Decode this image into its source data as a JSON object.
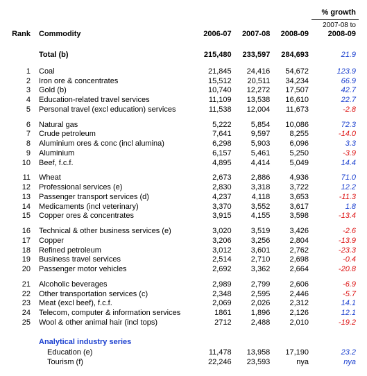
{
  "headers": {
    "rank": "Rank",
    "commodity": "Commodity",
    "y1": "2006-07",
    "y2": "2007-08",
    "y3": "2008-09",
    "growth_group": "% growth",
    "growth_sub1": "2007-08 to",
    "growth_sub2": "2008-09"
  },
  "total": {
    "label": "Total (b)",
    "y1": "215,480",
    "y2": "233,597",
    "y3": "284,693",
    "growth": "21.9",
    "growth_sign": "pos"
  },
  "rows": [
    {
      "rank": "1",
      "name": "Coal",
      "y1": "21,845",
      "y2": "24,416",
      "y3": "54,672",
      "g": "123.9",
      "s": "pos"
    },
    {
      "rank": "2",
      "name": "Iron ore & concentrates",
      "y1": "15,512",
      "y2": "20,511",
      "y3": "34,234",
      "g": "66.9",
      "s": "pos"
    },
    {
      "rank": "3",
      "name": "Gold (b)",
      "y1": "10,740",
      "y2": "12,272",
      "y3": "17,507",
      "g": "42.7",
      "s": "pos"
    },
    {
      "rank": "4",
      "name": "Education-related travel services",
      "y1": "11,109",
      "y2": "13,538",
      "y3": "16,610",
      "g": "22.7",
      "s": "pos"
    },
    {
      "rank": "5",
      "name": "Personal travel (excl education) services",
      "y1": "11,538",
      "y2": "12,004",
      "y3": "11,673",
      "g": "-2.8",
      "s": "neg"
    },
    {
      "rank": "6",
      "name": "Natural gas",
      "y1": "5,222",
      "y2": "5,854",
      "y3": "10,086",
      "g": "72.3",
      "s": "pos"
    },
    {
      "rank": "7",
      "name": "Crude petroleum",
      "y1": "7,641",
      "y2": "9,597",
      "y3": "8,255",
      "g": "-14.0",
      "s": "neg"
    },
    {
      "rank": "8",
      "name": "Aluminium ores & conc (incl alumina)",
      "y1": "6,298",
      "y2": "5,903",
      "y3": "6,096",
      "g": "3.3",
      "s": "pos"
    },
    {
      "rank": "9",
      "name": "Aluminium",
      "y1": "6,157",
      "y2": "5,461",
      "y3": "5,250",
      "g": "-3.9",
      "s": "neg"
    },
    {
      "rank": "10",
      "name": "Beef, f.c.f.",
      "y1": "4,895",
      "y2": "4,414",
      "y3": "5,049",
      "g": "14.4",
      "s": "pos"
    },
    {
      "rank": "11",
      "name": "Wheat",
      "y1": "2,673",
      "y2": "2,886",
      "y3": "4,936",
      "g": "71.0",
      "s": "pos"
    },
    {
      "rank": "12",
      "name": "Professional services (e)",
      "y1": "2,830",
      "y2": "3,318",
      "y3": "3,722",
      "g": "12.2",
      "s": "pos"
    },
    {
      "rank": "13",
      "name": "Passenger transport services (d)",
      "y1": "4,237",
      "y2": "4,118",
      "y3": "3,653",
      "g": "-11.3",
      "s": "neg"
    },
    {
      "rank": "14",
      "name": "Medicaments (incl veterinary)",
      "y1": "3,370",
      "y2": "3,552",
      "y3": "3,617",
      "g": "1.8",
      "s": "pos"
    },
    {
      "rank": "15",
      "name": "Copper ores & concentrates",
      "y1": "3,915",
      "y2": "4,155",
      "y3": "3,598",
      "g": "-13.4",
      "s": "neg"
    },
    {
      "rank": "16",
      "name": "Technical & other business services (e)",
      "y1": "3,020",
      "y2": "3,519",
      "y3": "3,426",
      "g": "-2.6",
      "s": "neg"
    },
    {
      "rank": "17",
      "name": "Copper",
      "y1": "3,206",
      "y2": "3,256",
      "y3": "2,804",
      "g": "-13.9",
      "s": "neg"
    },
    {
      "rank": "18",
      "name": "Refined petroleum",
      "y1": "3,012",
      "y2": "3,601",
      "y3": "2,762",
      "g": "-23.3",
      "s": "neg"
    },
    {
      "rank": "19",
      "name": "Business travel services",
      "y1": "2,514",
      "y2": "2,710",
      "y3": "2,698",
      "g": "-0.4",
      "s": "neg"
    },
    {
      "rank": "20",
      "name": "Passenger motor vehicles",
      "y1": "2,692",
      "y2": "3,362",
      "y3": "2,664",
      "g": "-20.8",
      "s": "neg"
    },
    {
      "rank": "21",
      "name": "Alcoholic beverages",
      "y1": "2,989",
      "y2": "2,799",
      "y3": "2,606",
      "g": "-6.9",
      "s": "neg"
    },
    {
      "rank": "22",
      "name": "Other transportation services (c)",
      "y1": "2,348",
      "y2": "2,595",
      "y3": "2,446",
      "g": "-5.7",
      "s": "neg"
    },
    {
      "rank": "23",
      "name": "Meat (excl beef), f.c.f.",
      "y1": "2,069",
      "y2": "2,026",
      "y3": "2,312",
      "g": "14.1",
      "s": "pos"
    },
    {
      "rank": "24",
      "name": "Telecom, computer & information services",
      "y1": "1861",
      "y2": "1,896",
      "y3": "2,126",
      "g": "12.1",
      "s": "pos"
    },
    {
      "rank": "25",
      "name": "Wool & other animal hair (incl tops)",
      "y1": "2712",
      "y2": "2,488",
      "y3": "2,010",
      "g": "-19.2",
      "s": "neg"
    }
  ],
  "group_breaks_after": [
    5,
    10,
    15,
    20
  ],
  "analytical": {
    "title": "Analytical industry series",
    "rows": [
      {
        "name": "Education (e)",
        "y1": "11,478",
        "y2": "13,958",
        "y3": "17,190",
        "g": "23.2",
        "s": "pos"
      },
      {
        "name": "Tourism  (f)",
        "y1": "22,246",
        "y2": "23,593",
        "y3": "nya",
        "g": "nya",
        "s": "spc"
      }
    ]
  }
}
